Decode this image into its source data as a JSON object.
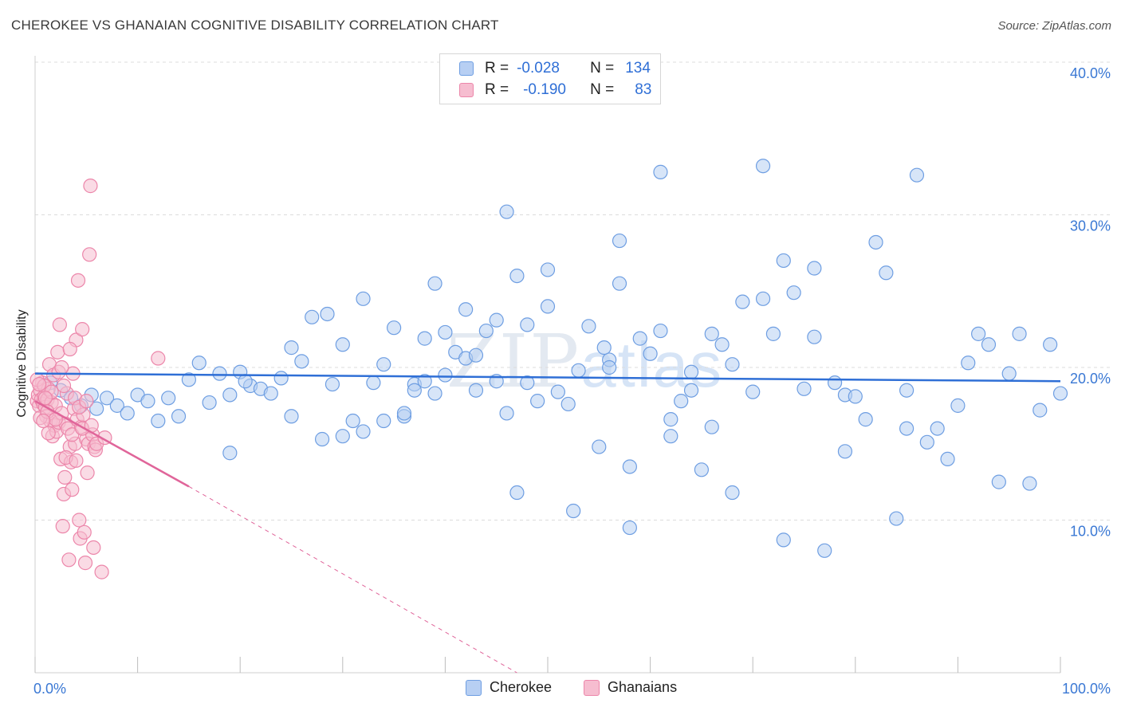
{
  "header": {
    "title": "CHEROKEE VS GHANAIAN COGNITIVE DISABILITY CORRELATION CHART",
    "source": "Source: ZipAtlas.com"
  },
  "watermark": {
    "zip": "ZIP",
    "atlas": "atlas"
  },
  "legend": {
    "rows": [
      {
        "r_label": "R =",
        "r_value": "-0.028",
        "n_label": "N =",
        "n_value": "134"
      },
      {
        "r_label": "R =",
        "r_value": "-0.190",
        "n_label": "N =",
        "n_value": "83"
      }
    ]
  },
  "bottom_legend": {
    "cherokee": "Cherokee",
    "ghanaians": "Ghanaians"
  },
  "colors": {
    "cherokee_fill": "#b7cff3",
    "cherokee_stroke": "#6e9ee2",
    "cherokee_line": "#2f6fd6",
    "ghanaian_fill": "#f6bdd0",
    "ghanaian_stroke": "#ec86aa",
    "ghanaian_line": "#e0659a",
    "tick_label": "#3a78d4",
    "grid": "#dcdcdc"
  },
  "chart_data": {
    "type": "scatter",
    "title": "CHEROKEE VS GHANAIAN COGNITIVE DISABILITY CORRELATION CHART",
    "xlabel": "",
    "ylabel": "Cognitive Disability",
    "xlim": [
      0,
      100
    ],
    "ylim": [
      0,
      42
    ],
    "y_ticks": [
      10,
      20,
      30,
      40
    ],
    "y_tick_labels": [
      "10.0%",
      "20.0%",
      "30.0%",
      "40.0%"
    ],
    "x_tick_labels": [
      "0.0%",
      "100.0%"
    ],
    "grid": true,
    "legend_position": "top-center",
    "series": [
      {
        "name": "Cherokee",
        "r": -0.028,
        "n": 134,
        "trend": {
          "x": [
            0,
            100
          ],
          "y": [
            19.6,
            19.1
          ]
        },
        "points": [
          [
            1.5,
            19.0
          ],
          [
            2.5,
            18.5
          ],
          [
            3.5,
            18.0
          ],
          [
            4.5,
            17.5
          ],
          [
            5.5,
            18.2
          ],
          [
            6,
            17.3
          ],
          [
            7,
            18.0
          ],
          [
            8,
            17.5
          ],
          [
            9,
            17.0
          ],
          [
            10,
            18.2
          ],
          [
            11,
            17.8
          ],
          [
            12,
            16.5
          ],
          [
            13,
            18.0
          ],
          [
            14,
            16.8
          ],
          [
            15,
            19.2
          ],
          [
            16,
            20.3
          ],
          [
            17,
            17.7
          ],
          [
            18,
            19.6
          ],
          [
            19,
            18.2
          ],
          [
            20,
            19.7
          ],
          [
            21,
            18.8
          ],
          [
            22,
            18.6
          ],
          [
            23,
            18.3
          ],
          [
            24,
            19.3
          ],
          [
            25,
            16.8
          ],
          [
            26,
            20.4
          ],
          [
            27,
            23.3
          ],
          [
            28,
            15.3
          ],
          [
            29,
            18.9
          ],
          [
            30,
            21.5
          ],
          [
            31,
            16.5
          ],
          [
            32,
            15.8
          ],
          [
            33,
            19.0
          ],
          [
            34,
            20.2
          ],
          [
            35,
            22.6
          ],
          [
            36,
            16.8
          ],
          [
            37,
            18.9
          ],
          [
            38,
            19.1
          ],
          [
            39,
            18.3
          ],
          [
            40,
            22.3
          ],
          [
            41,
            21.0
          ],
          [
            42,
            20.6
          ],
          [
            43,
            18.5
          ],
          [
            44,
            22.4
          ],
          [
            45,
            23.1
          ],
          [
            46,
            30.2
          ],
          [
            47,
            11.8
          ],
          [
            48,
            22.8
          ],
          [
            49,
            17.8
          ],
          [
            50,
            26.4
          ],
          [
            51,
            18.4
          ],
          [
            52,
            17.6
          ],
          [
            53,
            19.8
          ],
          [
            54,
            22.7
          ],
          [
            55,
            14.8
          ],
          [
            56,
            20.5
          ],
          [
            57,
            25.5
          ],
          [
            58,
            13.5
          ],
          [
            59,
            21.9
          ],
          [
            60,
            20.9
          ],
          [
            61,
            22.4
          ],
          [
            62,
            15.5
          ],
          [
            63,
            17.8
          ],
          [
            64,
            19.7
          ],
          [
            65,
            13.3
          ],
          [
            66,
            22.2
          ],
          [
            67,
            21.5
          ],
          [
            68,
            20.2
          ],
          [
            69,
            24.3
          ],
          [
            70,
            18.4
          ],
          [
            71,
            33.2
          ],
          [
            72,
            22.2
          ],
          [
            73,
            8.7
          ],
          [
            74,
            24.9
          ],
          [
            75,
            18.6
          ],
          [
            76,
            22.0
          ],
          [
            77,
            8.0
          ],
          [
            78,
            19.0
          ],
          [
            79,
            18.2
          ],
          [
            80,
            18.1
          ],
          [
            81,
            16.6
          ],
          [
            82,
            28.2
          ],
          [
            83,
            26.2
          ],
          [
            84,
            10.1
          ],
          [
            85,
            16.0
          ],
          [
            86,
            32.6
          ],
          [
            87,
            15.1
          ],
          [
            88,
            16.0
          ],
          [
            89,
            14.0
          ],
          [
            90,
            17.5
          ],
          [
            91,
            20.3
          ],
          [
            92,
            22.2
          ],
          [
            93,
            21.5
          ],
          [
            94,
            12.5
          ],
          [
            95,
            19.6
          ],
          [
            96,
            22.2
          ],
          [
            97,
            12.4
          ],
          [
            98,
            17.2
          ],
          [
            99,
            21.5
          ],
          [
            100,
            18.3
          ],
          [
            50,
            24.0
          ],
          [
            57,
            28.3
          ],
          [
            61,
            32.8
          ],
          [
            46,
            17.0
          ],
          [
            40,
            19.5
          ],
          [
            39,
            25.5
          ],
          [
            42,
            23.8
          ],
          [
            37,
            18.5
          ],
          [
            38,
            21.9
          ],
          [
            32,
            24.5
          ],
          [
            28.5,
            23.5
          ],
          [
            25,
            21.3
          ],
          [
            19,
            14.4
          ],
          [
            20.5,
            19.1
          ],
          [
            30,
            15.5
          ],
          [
            34,
            16.5
          ],
          [
            43,
            20.8
          ],
          [
            36,
            17.0
          ],
          [
            45,
            19.1
          ],
          [
            55.5,
            21.3
          ],
          [
            47,
            26.0
          ],
          [
            64,
            18.5
          ],
          [
            66,
            16.1
          ],
          [
            62,
            16.6
          ],
          [
            71,
            24.5
          ],
          [
            73,
            27.0
          ],
          [
            76,
            26.5
          ],
          [
            79,
            14.5
          ],
          [
            85,
            18.5
          ],
          [
            68,
            11.8
          ],
          [
            52.5,
            10.6
          ],
          [
            58,
            9.5
          ],
          [
            48,
            19.0
          ],
          [
            56,
            20.0
          ]
        ]
      },
      {
        "name": "Ghanaians",
        "r": -0.19,
        "n": 83,
        "trend": {
          "x": [
            0,
            15
          ],
          "y": [
            17.8,
            12.2
          ]
        },
        "trend_dashed": {
          "x": [
            15,
            47
          ],
          "y": [
            12.2,
            0
          ]
        },
        "points": [
          [
            0.2,
            17.8
          ],
          [
            0.3,
            18.2
          ],
          [
            0.4,
            17.5
          ],
          [
            0.5,
            18.5
          ],
          [
            0.6,
            17.9
          ],
          [
            0.7,
            19.0
          ],
          [
            0.8,
            17.6
          ],
          [
            0.9,
            18.1
          ],
          [
            1.0,
            17.4
          ],
          [
            1.1,
            16.8
          ],
          [
            1.2,
            17.9
          ],
          [
            1.3,
            18.6
          ],
          [
            1.4,
            20.2
          ],
          [
            1.5,
            16.5
          ],
          [
            1.6,
            17.7
          ],
          [
            1.7,
            15.5
          ],
          [
            1.8,
            19.5
          ],
          [
            1.9,
            16.2
          ],
          [
            2.0,
            17.5
          ],
          [
            2.1,
            15.8
          ],
          [
            2.2,
            21.0
          ],
          [
            2.3,
            16.4
          ],
          [
            2.4,
            22.8
          ],
          [
            2.5,
            14.0
          ],
          [
            2.6,
            17.0
          ],
          [
            2.7,
            9.6
          ],
          [
            2.8,
            11.7
          ],
          [
            2.9,
            12.8
          ],
          [
            3.0,
            16.3
          ],
          [
            3.1,
            18.3
          ],
          [
            3.2,
            16.0
          ],
          [
            3.3,
            7.4
          ],
          [
            3.4,
            14.8
          ],
          [
            3.5,
            13.8
          ],
          [
            3.6,
            12.0
          ],
          [
            3.7,
            19.6
          ],
          [
            3.8,
            17.3
          ],
          [
            3.9,
            15.0
          ],
          [
            4.0,
            21.8
          ],
          [
            4.1,
            16.6
          ],
          [
            4.2,
            25.7
          ],
          [
            4.3,
            10.0
          ],
          [
            4.4,
            8.8
          ],
          [
            4.5,
            16.1
          ],
          [
            4.6,
            22.5
          ],
          [
            4.7,
            16.9
          ],
          [
            4.8,
            9.2
          ],
          [
            4.9,
            7.2
          ],
          [
            5.0,
            15.3
          ],
          [
            5.1,
            13.1
          ],
          [
            5.2,
            15.0
          ],
          [
            5.3,
            27.4
          ],
          [
            5.4,
            31.9
          ],
          [
            5.6,
            15.6
          ],
          [
            5.7,
            8.2
          ],
          [
            5.8,
            14.8
          ],
          [
            5.9,
            14.6
          ],
          [
            6.0,
            15.0
          ],
          [
            6.5,
            6.6
          ],
          [
            6.8,
            15.4
          ],
          [
            12.0,
            20.6
          ],
          [
            0.2,
            19.2
          ],
          [
            0.5,
            16.7
          ],
          [
            0.9,
            18.8
          ],
          [
            1.2,
            17.1
          ],
          [
            1.6,
            18.4
          ],
          [
            2.0,
            16.6
          ],
          [
            2.3,
            19.7
          ],
          [
            2.8,
            18.8
          ],
          [
            3.4,
            21.2
          ],
          [
            3.6,
            15.6
          ],
          [
            3.9,
            18.0
          ],
          [
            4.3,
            17.4
          ],
          [
            4.6,
            16.0
          ],
          [
            5.0,
            17.8
          ],
          [
            1.3,
            15.7
          ],
          [
            0.4,
            18.9
          ],
          [
            0.8,
            16.5
          ],
          [
            1.0,
            18.0
          ],
          [
            2.6,
            20.0
          ],
          [
            3.0,
            14.1
          ],
          [
            4.0,
            13.9
          ],
          [
            5.5,
            16.2
          ]
        ]
      }
    ]
  }
}
